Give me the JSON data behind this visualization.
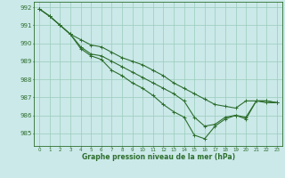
{
  "background_color": "#cbe9e9",
  "grid_color": "#99ccbb",
  "line_color": "#2d6e2d",
  "xlabel": "Graphe pression niveau de la mer (hPa)",
  "ylim": [
    984.3,
    992.3
  ],
  "xlim": [
    -0.5,
    23.5
  ],
  "yticks": [
    985,
    986,
    987,
    988,
    989,
    990,
    991,
    992
  ],
  "xticks": [
    0,
    1,
    2,
    3,
    4,
    5,
    6,
    7,
    8,
    9,
    10,
    11,
    12,
    13,
    14,
    15,
    16,
    17,
    18,
    19,
    20,
    21,
    22,
    23
  ],
  "series": [
    [
      991.9,
      991.5,
      991.0,
      990.5,
      990.2,
      989.9,
      989.8,
      989.5,
      989.2,
      989.0,
      988.8,
      988.5,
      988.2,
      987.8,
      987.5,
      987.2,
      986.9,
      986.6,
      986.5,
      986.4,
      986.8,
      986.8,
      986.7,
      986.7
    ],
    [
      991.9,
      991.5,
      991.0,
      990.5,
      989.8,
      989.4,
      989.3,
      989.0,
      988.7,
      988.4,
      988.1,
      987.8,
      987.5,
      987.2,
      986.8,
      985.9,
      985.4,
      985.5,
      985.9,
      986.0,
      985.8,
      986.8,
      986.8,
      986.7
    ],
    [
      991.9,
      991.5,
      991.0,
      990.5,
      989.7,
      989.3,
      989.1,
      988.5,
      988.2,
      987.8,
      987.5,
      987.1,
      986.6,
      986.2,
      985.9,
      984.9,
      984.7,
      985.4,
      985.8,
      986.0,
      985.9,
      986.8,
      986.8,
      986.7
    ]
  ]
}
